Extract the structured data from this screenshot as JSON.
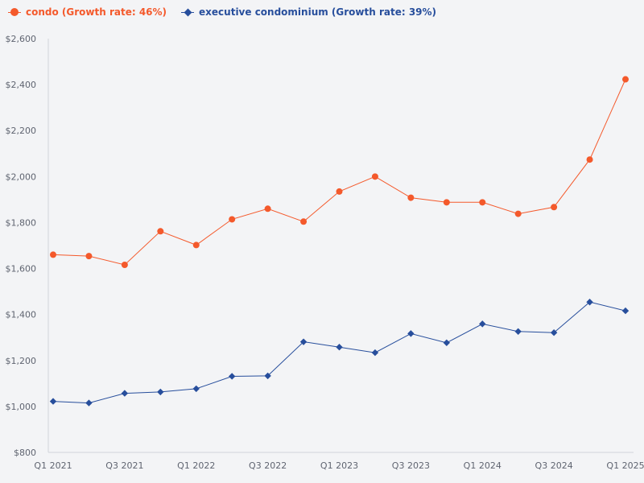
{
  "chart_data": {
    "type": "line",
    "title": "",
    "xlabel": "",
    "ylabel": "",
    "ylim": [
      800,
      2600
    ],
    "yticks": [
      800,
      1000,
      1200,
      1400,
      1600,
      1800,
      2000,
      2200,
      2400,
      2600
    ],
    "ytick_labels": [
      "$800",
      "$1,000",
      "$1,200",
      "$1,400",
      "$1,600",
      "$1,800",
      "$2,000",
      "$2,200",
      "$2,400",
      "$2,600"
    ],
    "categories": [
      "Q1 2021",
      "Q2 2021",
      "Q3 2021",
      "Q4 2021",
      "Q1 2022",
      "Q2 2022",
      "Q3 2022",
      "Q4 2022",
      "Q1 2023",
      "Q2 2023",
      "Q3 2023",
      "Q4 2023",
      "Q1 2024",
      "Q2 2024",
      "Q3 2024",
      "Q4 2024",
      "Q1 2025"
    ],
    "xtick_labels": [
      "Q1 2021",
      "Q3 2021",
      "Q1 2022",
      "Q3 2022",
      "Q1 2023",
      "Q3 2023",
      "Q1 2024",
      "Q3 2024",
      "Q1 2025"
    ],
    "legend_position": "top-left",
    "series": [
      {
        "name": "condo (Growth rate: 46%)",
        "color": "#f4592b",
        "marker": "circle",
        "values": [
          1660,
          1654,
          1616,
          1762,
          1702,
          1814,
          1860,
          1804,
          1935,
          2000,
          1908,
          1888,
          1888,
          1838,
          1867,
          2074,
          2423
        ]
      },
      {
        "name": "executive condominium (Growth rate: 39%)",
        "color": "#274e9c",
        "marker": "diamond",
        "values": [
          1022,
          1015,
          1057,
          1063,
          1077,
          1131,
          1133,
          1281,
          1258,
          1234,
          1317,
          1277,
          1359,
          1326,
          1321,
          1454,
          1416
        ]
      }
    ]
  },
  "colors": {
    "axis": "#d0d4da",
    "tick_text": "#5f6470"
  }
}
